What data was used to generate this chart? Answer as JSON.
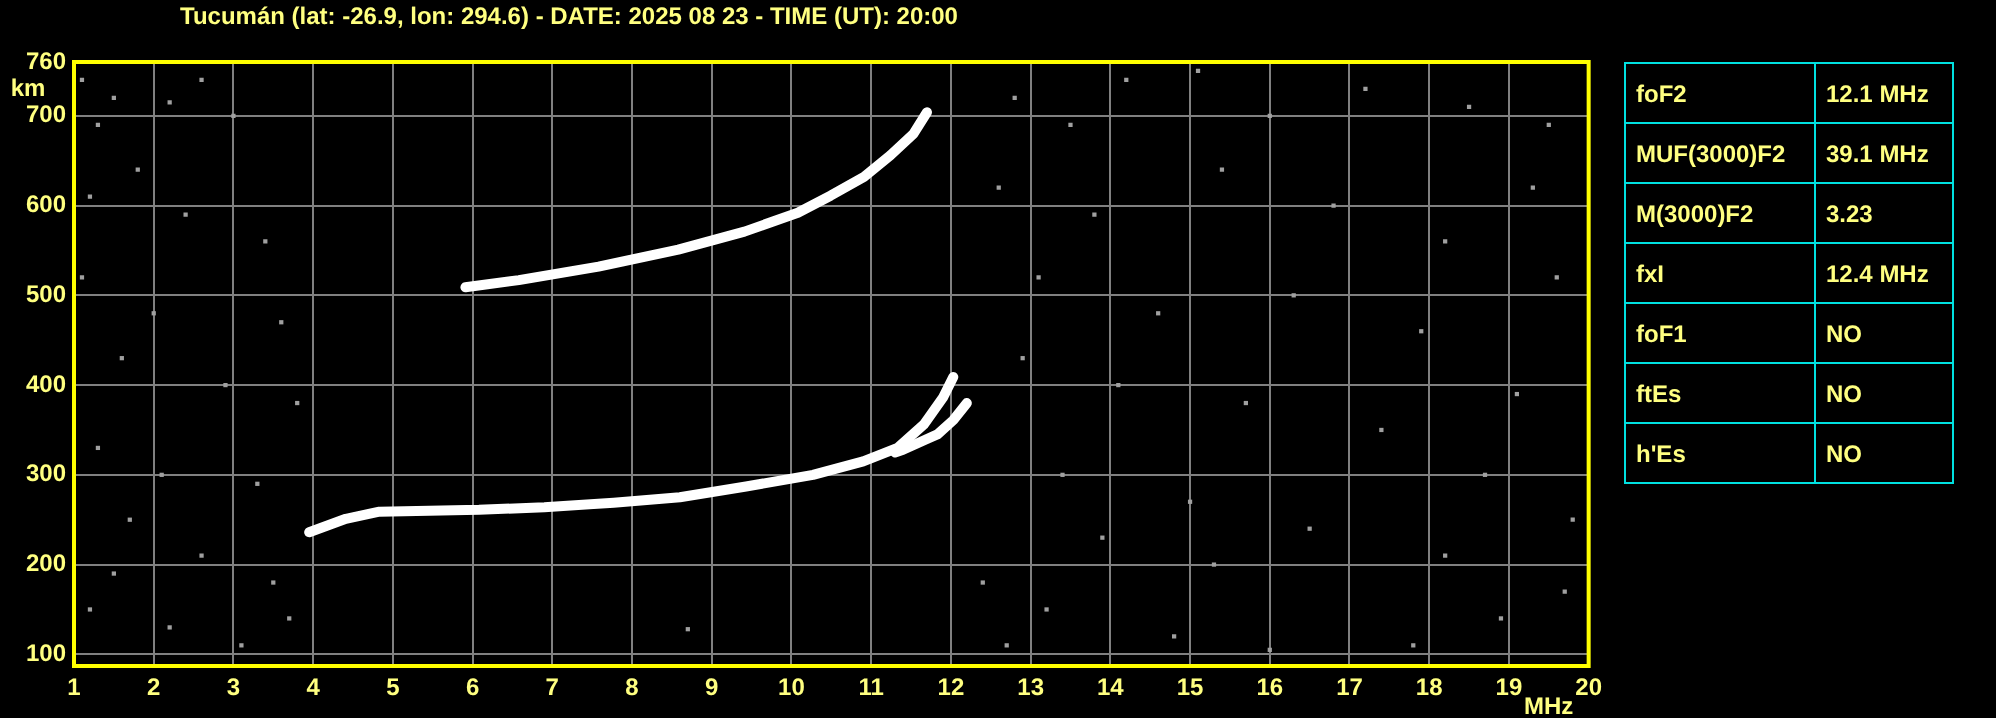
{
  "chart_data": [
    {
      "type": "line",
      "title": "Tucumán (lat: -26.9, lon: 294.6) - DATE: 2025 08 23 - TIME (UT): 20:00",
      "xlabel": "MHz",
      "ylabel": "km",
      "xlim": [
        1,
        20
      ],
      "ylim": [
        87,
        760
      ],
      "xticks": [
        1,
        2,
        3,
        4,
        5,
        6,
        7,
        8,
        9,
        10,
        11,
        12,
        13,
        14,
        15,
        16,
        17,
        18,
        19,
        20
      ],
      "yticks": [
        100,
        200,
        300,
        400,
        500,
        600,
        700,
        760
      ],
      "grid": true,
      "legend": false,
      "line_style": "solid",
      "series": [
        {
          "color": "#ffffff",
          "x": [
            3.95,
            4.41,
            4.83,
            6.08,
            6.9,
            7.77,
            8.6,
            9.43,
            10.27,
            10.9,
            11.33,
            11.66,
            11.9,
            12.03
          ],
          "values": [
            236,
            251,
            259,
            261,
            264,
            269,
            275,
            287,
            300,
            315,
            330,
            356,
            386,
            409
          ]
        },
        {
          "color": "#ffffff",
          "x": [
            11.3,
            11.4,
            11.7,
            11.83,
            12.03,
            12.2
          ],
          "values": [
            325,
            328,
            340,
            345,
            361,
            380
          ]
        },
        {
          "color": "#ffffff",
          "x": [
            5.91,
            6.58,
            7.58,
            8.58,
            9.41,
            10.08,
            10.49,
            10.91,
            11.24,
            11.53,
            11.7
          ],
          "values": [
            509,
            517,
            532,
            551,
            571,
            592,
            611,
            632,
            656,
            680,
            704
          ]
        },
        {
          "type": "scatter",
          "marker": "square",
          "color": "#a0a0a0",
          "x": [
            1.1,
            1.5,
            1.3,
            2.2,
            2.6,
            3.0,
            1.2,
            1.8,
            2.4,
            3.4,
            1.1,
            2.0,
            3.6,
            1.6,
            2.9,
            3.8,
            1.3,
            2.1,
            3.3,
            1.7,
            2.6,
            3.5,
            1.2,
            2.2,
            3.1,
            3.7,
            1.5,
            8.7,
            12.8,
            13.5,
            14.2,
            15.1,
            16.0,
            17.2,
            18.5,
            19.5,
            12.6,
            13.8,
            15.4,
            16.8,
            18.2,
            19.3,
            13.1,
            14.6,
            16.3,
            17.9,
            19.6,
            12.9,
            14.1,
            15.7,
            17.4,
            19.1,
            13.4,
            15.0,
            16.5,
            18.7,
            19.8,
            12.4,
            13.2,
            14.8,
            16.0,
            17.8,
            18.9,
            19.7,
            12.7,
            15.3,
            13.9,
            18.2
          ],
          "values": [
            740,
            720,
            690,
            715,
            740,
            700,
            610,
            640,
            590,
            560,
            520,
            480,
            470,
            430,
            400,
            380,
            330,
            300,
            290,
            250,
            210,
            180,
            150,
            130,
            110,
            140,
            190,
            128,
            720,
            690,
            740,
            750,
            700,
            730,
            710,
            690,
            620,
            590,
            640,
            600,
            560,
            620,
            520,
            480,
            500,
            460,
            520,
            430,
            400,
            380,
            350,
            390,
            300,
            270,
            240,
            300,
            250,
            180,
            150,
            120,
            105,
            110,
            140,
            170,
            110,
            200,
            230,
            210
          ]
        }
      ]
    },
    {
      "type": "other",
      "annotations": [
        "foF2",
        "12.1 MHz",
        "MUF(3000)F2",
        "39.1 MHz",
        "M(3000)F2",
        "3.23",
        "fxI",
        "12.4 MHz",
        "foF1",
        "NO",
        "ftEs",
        "NO",
        "h'Es",
        "NO"
      ]
    }
  ]
}
